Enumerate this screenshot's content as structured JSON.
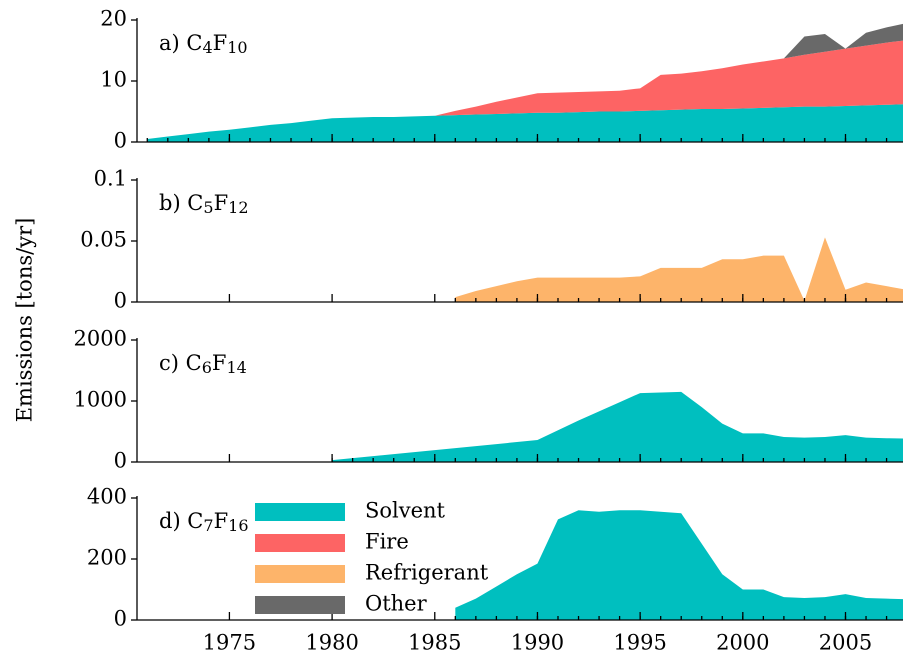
{
  "ylabel": "Emissions [tons/yr]",
  "chart_data": [
    {
      "type": "area",
      "stacked": true,
      "title": "a) C4F10",
      "x": [
        1971,
        1972,
        1973,
        1974,
        1975,
        1976,
        1977,
        1978,
        1979,
        1980,
        1981,
        1982,
        1983,
        1984,
        1985,
        1986,
        1987,
        1988,
        1989,
        1990,
        1991,
        1992,
        1993,
        1994,
        1995,
        1996,
        1997,
        1998,
        1999,
        2000,
        2001,
        2002,
        2003,
        2004,
        2005,
        2006,
        2007,
        2008
      ],
      "series": [
        {
          "name": "Solvent",
          "color": "#00bfbf",
          "values": [
            0.5,
            0.9,
            1.3,
            1.7,
            2.0,
            2.4,
            2.8,
            3.1,
            3.5,
            3.9,
            4.0,
            4.1,
            4.1,
            4.2,
            4.3,
            4.4,
            4.5,
            4.6,
            4.7,
            4.8,
            4.8,
            4.9,
            5.0,
            5.0,
            5.1,
            5.2,
            5.3,
            5.4,
            5.4,
            5.5,
            5.6,
            5.7,
            5.8,
            5.8,
            5.9,
            6.0,
            6.1,
            6.2
          ]
        },
        {
          "name": "Fire",
          "color": "#fd6464",
          "values": [
            0,
            0,
            0,
            0,
            0,
            0,
            0,
            0,
            0,
            0,
            0,
            0,
            0,
            0,
            0,
            0.7,
            1.3,
            2.0,
            2.6,
            3.2,
            3.3,
            3.3,
            3.3,
            3.4,
            3.7,
            5.8,
            5.9,
            6.2,
            6.7,
            7.2,
            7.6,
            8.0,
            8.5,
            9.0,
            9.4,
            9.8,
            10.2,
            10.5
          ]
        },
        {
          "name": "Other",
          "color": "#696969",
          "values": [
            0,
            0,
            0,
            0,
            0,
            0,
            0,
            0,
            0,
            0,
            0,
            0,
            0,
            0,
            0,
            0,
            0,
            0,
            0,
            0,
            0,
            0,
            0,
            0,
            0,
            0,
            0,
            0,
            0,
            0,
            0,
            0,
            3.0,
            2.9,
            0,
            2.1,
            2.5,
            2.8
          ]
        }
      ],
      "xlim": [
        1970.5,
        2007.8
      ],
      "xticks": [
        1975,
        1980,
        1985,
        1990,
        1995,
        2000,
        2005
      ],
      "xtick_labels": false,
      "ylim": [
        0,
        20
      ],
      "yticks": [
        0,
        10,
        20
      ]
    },
    {
      "type": "area",
      "stacked": true,
      "title": "b) C5F12",
      "x": [
        1986,
        1987,
        1988,
        1989,
        1990,
        1991,
        1992,
        1993,
        1994,
        1995,
        1996,
        1997,
        1998,
        1999,
        2000,
        2001,
        2002,
        2003,
        2004,
        2005,
        2006,
        2007,
        2008
      ],
      "series": [
        {
          "name": "Refrigerant",
          "color": "#fdb46a",
          "values": [
            0.004,
            0.009,
            0.013,
            0.017,
            0.02,
            0.02,
            0.02,
            0.02,
            0.02,
            0.021,
            0.028,
            0.028,
            0.028,
            0.035,
            0.035,
            0.038,
            0.038,
            0.001,
            0.053,
            0.01,
            0.016,
            0.013,
            0.01
          ]
        }
      ],
      "xlim": [
        1970.5,
        2007.8
      ],
      "xticks": [
        1975,
        1980,
        1985,
        1990,
        1995,
        2000,
        2005
      ],
      "xtick_labels": false,
      "ylim": [
        0,
        0.1
      ],
      "yticks": [
        0,
        0.05,
        0.1
      ]
    },
    {
      "type": "area",
      "stacked": true,
      "title": "c) C6F14",
      "x": [
        1980,
        1981,
        1982,
        1983,
        1984,
        1985,
        1986,
        1987,
        1988,
        1989,
        1990,
        1991,
        1992,
        1993,
        1994,
        1995,
        1996,
        1997,
        1998,
        1999,
        2000,
        2001,
        2002,
        2003,
        2004,
        2005,
        2006,
        2007,
        2008
      ],
      "series": [
        {
          "name": "Solvent",
          "color": "#00bfbf",
          "values": [
            30,
            63,
            96,
            129,
            162,
            195,
            228,
            261,
            294,
            327,
            360,
            520,
            680,
            830,
            980,
            1130,
            1140,
            1150,
            900,
            630,
            470,
            470,
            410,
            400,
            410,
            440,
            400,
            390,
            385
          ]
        }
      ],
      "xlim": [
        1970.5,
        2007.8
      ],
      "xticks": [
        1975,
        1980,
        1985,
        1990,
        1995,
        2000,
        2005
      ],
      "xtick_labels": false,
      "ylim": [
        0,
        2000
      ],
      "yticks": [
        0,
        1000,
        2000
      ]
    },
    {
      "type": "area",
      "stacked": true,
      "title": "d) C7F16",
      "x": [
        1986,
        1987,
        1988,
        1989,
        1990,
        1991,
        1992,
        1993,
        1994,
        1995,
        1996,
        1997,
        1998,
        1999,
        2000,
        2001,
        2002,
        2003,
        2004,
        2005,
        2006,
        2007,
        2008
      ],
      "series": [
        {
          "name": "Solvent",
          "color": "#00bfbf",
          "values": [
            40,
            70,
            110,
            150,
            185,
            330,
            360,
            355,
            360,
            360,
            355,
            350,
            250,
            150,
            100,
            100,
            75,
            72,
            75,
            85,
            72,
            70,
            68
          ]
        }
      ],
      "xlim": [
        1970.5,
        2007.8
      ],
      "xticks": [
        1975,
        1980,
        1985,
        1990,
        1995,
        2000,
        2005
      ],
      "xtick_labels": true,
      "ylim": [
        0,
        400
      ],
      "yticks": [
        0,
        200,
        400
      ],
      "legend": {
        "loc": "upper left",
        "entries": [
          {
            "name": "Solvent",
            "color": "#00bfbf"
          },
          {
            "name": "Fire",
            "color": "#fd6464"
          },
          {
            "name": "Refrigerant",
            "color": "#fdb46a"
          },
          {
            "name": "Other",
            "color": "#696969"
          }
        ]
      }
    }
  ]
}
